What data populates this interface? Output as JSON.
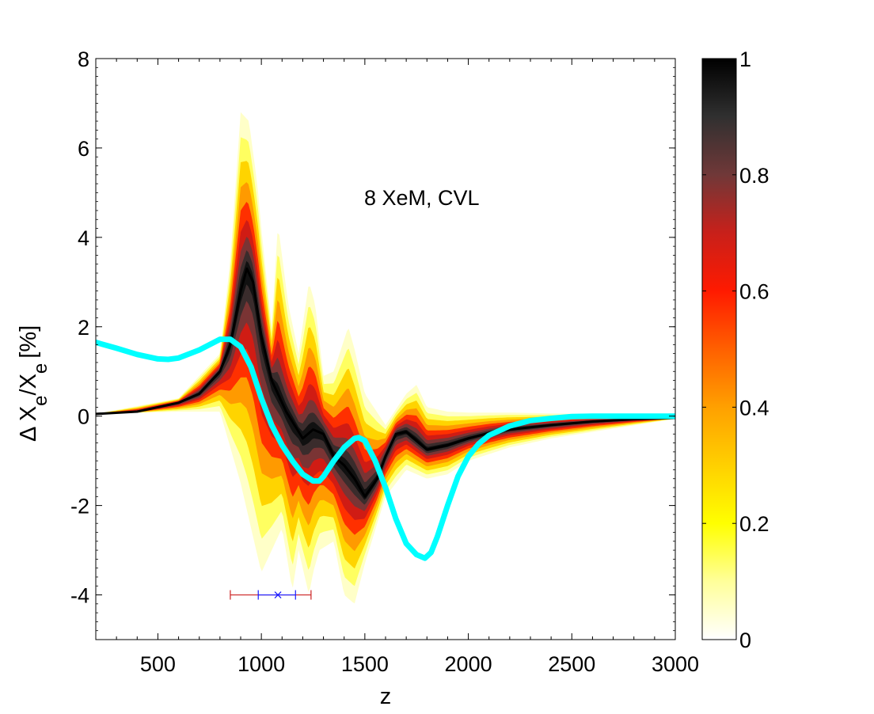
{
  "chart_data": {
    "type": "area",
    "title": "",
    "annotation": "8 XeM,  CVL",
    "xlabel": "z",
    "ylabel": "Δ X",
    "ylabel_sub": "e",
    "ylabel_rest": "/X",
    "ylabel_sub2": "e",
    "ylabel_unit": "[%]",
    "xlim": [
      200,
      3000
    ],
    "ylim": [
      -5,
      8
    ],
    "xticks": [
      500,
      1000,
      1500,
      2000,
      2500,
      3000
    ],
    "xtick_labels": [
      "500",
      "1000",
      "1500",
      "2000",
      "2500",
      "3000"
    ],
    "yticks": [
      -4,
      -2,
      0,
      2,
      4,
      6,
      8
    ],
    "ytick_labels": [
      "-4",
      "-2",
      "0",
      "2",
      "4",
      "6",
      "8"
    ],
    "colorbar": {
      "range": [
        0,
        1
      ],
      "ticks": [
        0,
        0.2,
        0.4,
        0.6,
        0.8,
        1
      ],
      "tick_labels": [
        "0",
        "0.2",
        "0.4",
        "0.6",
        "0.8",
        "1"
      ],
      "colors": [
        "#ffffff",
        "#ffff70",
        "#ffff00",
        "#ffc000",
        "#ff7a00",
        "#ff1a00",
        "#d01010",
        "#7a3030",
        "#404040",
        "#000000"
      ]
    },
    "series": [
      {
        "name": "median",
        "color": "#000000",
        "x": [
          200,
          400,
          600,
          700,
          800,
          850,
          900,
          930,
          960,
          1000,
          1050,
          1080,
          1120,
          1200,
          1250,
          1300,
          1350,
          1400,
          1450,
          1500,
          1560,
          1600,
          1650,
          1700,
          1750,
          1800,
          1900,
          2000,
          2100,
          2200,
          2400,
          2600,
          2800,
          3000
        ],
        "y": [
          0.05,
          0.1,
          0.3,
          0.5,
          1.0,
          1.6,
          2.8,
          3.3,
          3.0,
          1.8,
          0.8,
          0.5,
          0.1,
          -0.5,
          -0.3,
          -0.4,
          -0.9,
          -1.1,
          -1.4,
          -1.8,
          -1.4,
          -0.9,
          -0.4,
          -0.35,
          -0.55,
          -0.75,
          -0.65,
          -0.5,
          -0.38,
          -0.3,
          -0.2,
          -0.12,
          -0.07,
          -0.04
        ]
      },
      {
        "name": "upper envelope",
        "x": [
          200,
          600,
          800,
          850,
          900,
          940,
          980,
          1000,
          1050,
          1080,
          1130,
          1180,
          1230,
          1260,
          1300,
          1350,
          1420,
          1450,
          1500,
          1600,
          1700,
          1750,
          1800,
          1900,
          2000,
          2100,
          2200,
          2400,
          3000
        ],
        "y": [
          0.05,
          0.4,
          1.4,
          3.5,
          6.8,
          6.6,
          5.2,
          4.2,
          2.0,
          4.3,
          2.5,
          1.4,
          3.0,
          2.5,
          0.9,
          1.0,
          2.0,
          1.5,
          0.5,
          -0.2,
          0.5,
          0.7,
          0.2,
          0.1,
          0.08,
          0.08,
          0.08,
          0.06,
          0.02
        ]
      },
      {
        "name": "lower envelope",
        "x": [
          200,
          600,
          800,
          900,
          1000,
          1100,
          1150,
          1180,
          1230,
          1250,
          1280,
          1350,
          1400,
          1450,
          1500,
          1600,
          1700,
          1800,
          1900,
          2000,
          2200,
          2400,
          3000
        ],
        "y": [
          0.05,
          0.1,
          0.1,
          -1.5,
          -3.5,
          -2.5,
          -3.9,
          -3.0,
          -4.0,
          -3.5,
          -3.0,
          -2.8,
          -4.0,
          -4.2,
          -3.3,
          -1.8,
          -1.2,
          -1.4,
          -1.3,
          -1.0,
          -0.7,
          -0.5,
          -0.06
        ]
      },
      {
        "name": "cyan reference",
        "color": "#00ffff",
        "x": [
          200,
          300,
          400,
          500,
          550,
          600,
          700,
          800,
          850,
          900,
          950,
          1000,
          1050,
          1100,
          1150,
          1200,
          1250,
          1280,
          1300,
          1350,
          1400,
          1450,
          1470,
          1500,
          1550,
          1600,
          1650,
          1700,
          1750,
          1790,
          1820,
          1850,
          1900,
          1950,
          2000,
          2050,
          2100,
          2200,
          2300,
          2400,
          2500,
          2600,
          2800,
          3000
        ],
        "y": [
          1.65,
          1.52,
          1.38,
          1.28,
          1.27,
          1.3,
          1.48,
          1.72,
          1.72,
          1.55,
          1.1,
          0.4,
          -0.2,
          -0.65,
          -1.0,
          -1.3,
          -1.45,
          -1.45,
          -1.35,
          -1.0,
          -0.7,
          -0.5,
          -0.48,
          -0.55,
          -1.0,
          -1.6,
          -2.3,
          -2.85,
          -3.1,
          -3.18,
          -3.05,
          -2.7,
          -2.0,
          -1.35,
          -0.9,
          -0.62,
          -0.43,
          -0.22,
          -0.1,
          -0.05,
          -0.01,
          0.0,
          0.0,
          0.0
        ]
      }
    ],
    "error_bars": [
      {
        "name": "red interval",
        "color": "#cc2222",
        "x_low": 850,
        "x_high": 1240,
        "y": -4.0
      },
      {
        "name": "blue interval",
        "color": "#1a1aff",
        "x_low": 985,
        "x_high": 1165,
        "x_center": 1080,
        "y": -4.0
      }
    ]
  }
}
